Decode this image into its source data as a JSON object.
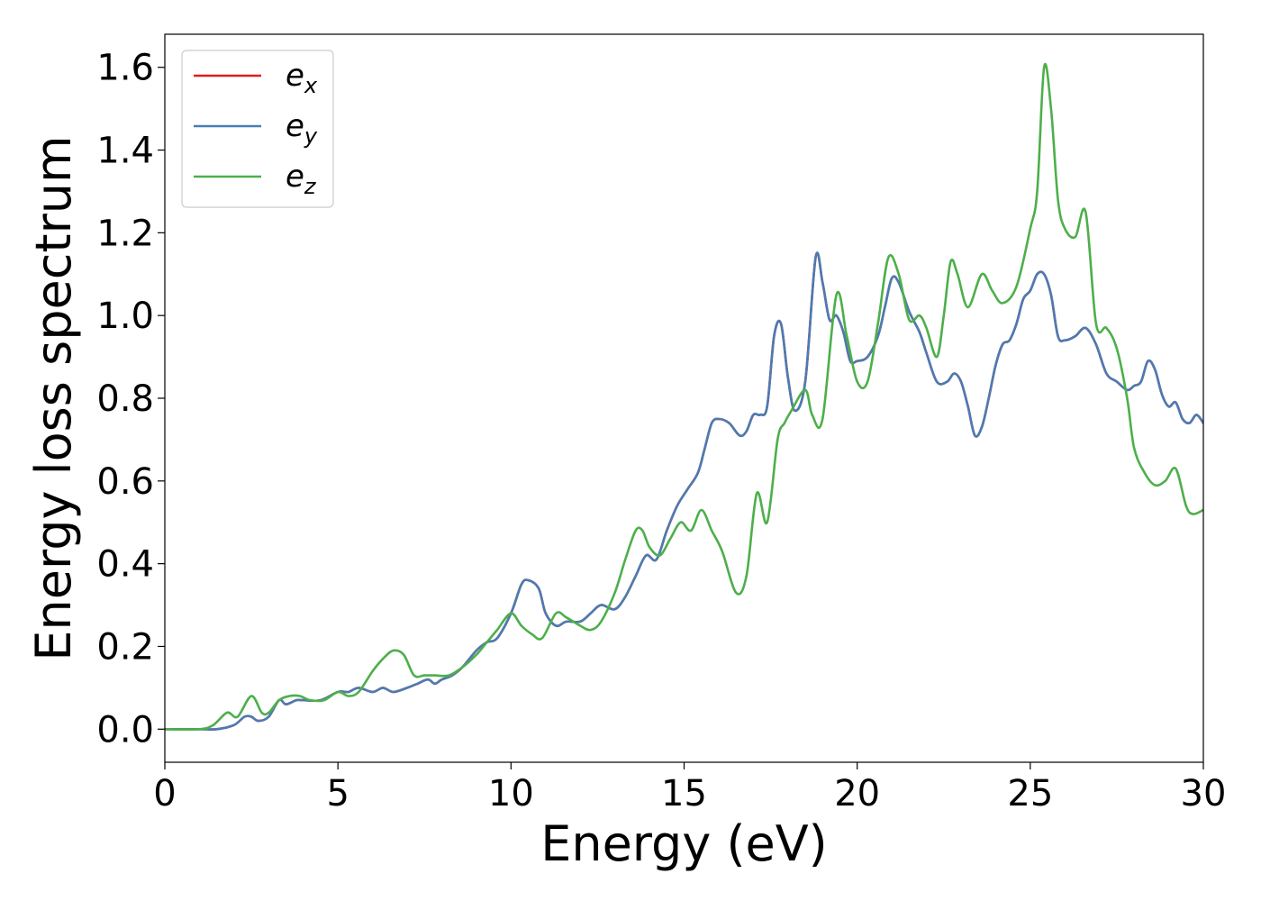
{
  "chart_data": {
    "type": "line",
    "xlabel": "Energy (eV)",
    "ylabel": "Energy loss spectrum",
    "xlim": [
      0,
      30
    ],
    "ylim": [
      -0.08,
      1.68
    ],
    "xticks": [
      0,
      5,
      10,
      15,
      20,
      25,
      30
    ],
    "yticks": [
      0.0,
      0.2,
      0.4,
      0.6,
      0.8,
      1.0,
      1.2,
      1.4,
      1.6
    ],
    "xtick_labels": [
      "0",
      "5",
      "10",
      "15",
      "20",
      "25",
      "30"
    ],
    "ytick_labels": [
      "0.0",
      "0.2",
      "0.4",
      "0.6",
      "0.8",
      "1.0",
      "1.2",
      "1.4",
      "1.6"
    ],
    "grid": false,
    "legend_position": "top-left",
    "series": [
      {
        "name": "e",
        "subscript": "x",
        "color": "#e41a1c",
        "x": [
          0,
          1,
          1.5,
          2,
          2.3,
          2.5,
          2.7,
          3,
          3.3,
          3.5,
          3.8,
          4,
          4.5,
          5,
          5.3,
          5.6,
          6,
          6.3,
          6.6,
          7,
          7.3,
          7.6,
          7.8,
          8,
          8.3,
          8.6,
          9,
          9.3,
          9.6,
          10,
          10.3,
          10.5,
          10.8,
          11,
          11.3,
          11.6,
          12,
          12.3,
          12.6,
          13,
          13.3,
          13.6,
          13.9,
          14.2,
          14.5,
          14.8,
          15.1,
          15.4,
          15.6,
          15.8,
          16,
          16.3,
          16.6,
          16.8,
          17,
          17.2,
          17.4,
          17.6,
          17.8,
          18,
          18.2,
          18.5,
          18.8,
          19,
          19.2,
          19.4,
          19.6,
          19.8,
          20,
          20.3,
          20.6,
          20.8,
          21,
          21.2,
          21.5,
          21.8,
          22,
          22.3,
          22.6,
          22.8,
          23,
          23.2,
          23.4,
          23.6,
          23.8,
          24,
          24.2,
          24.4,
          24.6,
          24.8,
          25,
          25.2,
          25.4,
          25.6,
          25.8,
          26,
          26.3,
          26.6,
          26.9,
          27.2,
          27.5,
          27.8,
          28,
          28.2,
          28.4,
          28.6,
          28.8,
          29,
          29.2,
          29.4,
          29.6,
          29.8,
          30
        ],
        "y": [
          0,
          0,
          0,
          0.01,
          0.03,
          0.03,
          0.02,
          0.03,
          0.07,
          0.06,
          0.07,
          0.07,
          0.07,
          0.09,
          0.09,
          0.1,
          0.09,
          0.1,
          0.09,
          0.1,
          0.11,
          0.12,
          0.11,
          0.12,
          0.13,
          0.15,
          0.19,
          0.21,
          0.22,
          0.28,
          0.35,
          0.36,
          0.34,
          0.28,
          0.25,
          0.26,
          0.26,
          0.28,
          0.3,
          0.29,
          0.32,
          0.37,
          0.42,
          0.41,
          0.48,
          0.54,
          0.58,
          0.62,
          0.68,
          0.74,
          0.75,
          0.74,
          0.71,
          0.72,
          0.76,
          0.76,
          0.78,
          0.95,
          0.98,
          0.85,
          0.77,
          0.84,
          1.14,
          1.08,
          0.99,
          1.0,
          0.96,
          0.89,
          0.89,
          0.9,
          0.95,
          1.02,
          1.09,
          1.08,
          1.01,
          0.96,
          0.91,
          0.84,
          0.84,
          0.86,
          0.84,
          0.78,
          0.71,
          0.73,
          0.8,
          0.88,
          0.93,
          0.94,
          0.98,
          1.04,
          1.06,
          1.1,
          1.1,
          1.05,
          0.95,
          0.94,
          0.95,
          0.97,
          0.93,
          0.86,
          0.84,
          0.82,
          0.83,
          0.84,
          0.89,
          0.87,
          0.81,
          0.78,
          0.79,
          0.75,
          0.74,
          0.76,
          0.74
        ]
      },
      {
        "name": "e",
        "subscript": "y",
        "color": "#4a7cb3",
        "x": [
          0,
          1,
          1.5,
          2,
          2.3,
          2.5,
          2.7,
          3,
          3.3,
          3.5,
          3.8,
          4,
          4.5,
          5,
          5.3,
          5.6,
          6,
          6.3,
          6.6,
          7,
          7.3,
          7.6,
          7.8,
          8,
          8.3,
          8.6,
          9,
          9.3,
          9.6,
          10,
          10.3,
          10.5,
          10.8,
          11,
          11.3,
          11.6,
          12,
          12.3,
          12.6,
          13,
          13.3,
          13.6,
          13.9,
          14.2,
          14.5,
          14.8,
          15.1,
          15.4,
          15.6,
          15.8,
          16,
          16.3,
          16.6,
          16.8,
          17,
          17.2,
          17.4,
          17.6,
          17.8,
          18,
          18.2,
          18.5,
          18.8,
          19,
          19.2,
          19.4,
          19.6,
          19.8,
          20,
          20.3,
          20.6,
          20.8,
          21,
          21.2,
          21.5,
          21.8,
          22,
          22.3,
          22.6,
          22.8,
          23,
          23.2,
          23.4,
          23.6,
          23.8,
          24,
          24.2,
          24.4,
          24.6,
          24.8,
          25,
          25.2,
          25.4,
          25.6,
          25.8,
          26,
          26.3,
          26.6,
          26.9,
          27.2,
          27.5,
          27.8,
          28,
          28.2,
          28.4,
          28.6,
          28.8,
          29,
          29.2,
          29.4,
          29.6,
          29.8,
          30
        ],
        "y": [
          0,
          0,
          0,
          0.01,
          0.03,
          0.03,
          0.02,
          0.03,
          0.07,
          0.06,
          0.07,
          0.07,
          0.07,
          0.09,
          0.09,
          0.1,
          0.09,
          0.1,
          0.09,
          0.1,
          0.11,
          0.12,
          0.11,
          0.12,
          0.13,
          0.15,
          0.19,
          0.21,
          0.22,
          0.28,
          0.35,
          0.36,
          0.34,
          0.28,
          0.25,
          0.26,
          0.26,
          0.28,
          0.3,
          0.29,
          0.32,
          0.37,
          0.42,
          0.41,
          0.48,
          0.54,
          0.58,
          0.62,
          0.68,
          0.74,
          0.75,
          0.74,
          0.71,
          0.72,
          0.76,
          0.76,
          0.78,
          0.95,
          0.98,
          0.85,
          0.77,
          0.84,
          1.14,
          1.08,
          0.99,
          1.0,
          0.96,
          0.89,
          0.89,
          0.9,
          0.95,
          1.02,
          1.09,
          1.08,
          1.01,
          0.96,
          0.91,
          0.84,
          0.84,
          0.86,
          0.84,
          0.78,
          0.71,
          0.73,
          0.8,
          0.88,
          0.93,
          0.94,
          0.98,
          1.04,
          1.06,
          1.1,
          1.1,
          1.05,
          0.95,
          0.94,
          0.95,
          0.97,
          0.93,
          0.86,
          0.84,
          0.82,
          0.83,
          0.84,
          0.89,
          0.87,
          0.81,
          0.78,
          0.79,
          0.75,
          0.74,
          0.76,
          0.74
        ]
      },
      {
        "name": "e",
        "subscript": "z",
        "color": "#4daf4a",
        "x": [
          0,
          1,
          1.4,
          1.8,
          2.1,
          2.5,
          2.8,
          3,
          3.3,
          3.6,
          3.9,
          4.2,
          4.6,
          5,
          5.3,
          5.6,
          6,
          6.3,
          6.6,
          6.9,
          7.2,
          7.5,
          7.8,
          8.2,
          8.6,
          9,
          9.3,
          9.6,
          10,
          10.3,
          10.6,
          10.9,
          11.3,
          11.6,
          12,
          12.3,
          12.6,
          13,
          13.3,
          13.6,
          13.8,
          14,
          14.3,
          14.6,
          14.9,
          15.2,
          15.5,
          15.8,
          16.1,
          16.5,
          16.8,
          17.1,
          17.4,
          17.7,
          17.9,
          18.1,
          18.5,
          18.7,
          19,
          19.4,
          19.7,
          20,
          20.3,
          20.6,
          20.9,
          21.2,
          21.5,
          21.8,
          22,
          22.3,
          22.5,
          22.7,
          22.9,
          23.2,
          23.6,
          23.9,
          24.2,
          24.6,
          25,
          25.2,
          25.4,
          25.6,
          25.8,
          26,
          26.3,
          26.6,
          26.9,
          27.2,
          27.5,
          27.8,
          28,
          28.3,
          28.6,
          28.9,
          29.2,
          29.5,
          29.7,
          30
        ],
        "y": [
          0,
          0,
          0.01,
          0.04,
          0.03,
          0.08,
          0.04,
          0.04,
          0.07,
          0.08,
          0.08,
          0.07,
          0.07,
          0.09,
          0.08,
          0.09,
          0.14,
          0.17,
          0.19,
          0.18,
          0.13,
          0.13,
          0.13,
          0.13,
          0.15,
          0.18,
          0.21,
          0.24,
          0.28,
          0.25,
          0.23,
          0.22,
          0.28,
          0.27,
          0.25,
          0.24,
          0.26,
          0.33,
          0.41,
          0.48,
          0.48,
          0.44,
          0.42,
          0.46,
          0.5,
          0.48,
          0.53,
          0.48,
          0.43,
          0.33,
          0.37,
          0.57,
          0.5,
          0.7,
          0.74,
          0.77,
          0.82,
          0.76,
          0.75,
          1.05,
          0.95,
          0.84,
          0.84,
          0.98,
          1.14,
          1.1,
          0.99,
          1.0,
          0.97,
          0.9,
          1.0,
          1.13,
          1.1,
          1.02,
          1.1,
          1.06,
          1.03,
          1.07,
          1.21,
          1.3,
          1.6,
          1.5,
          1.28,
          1.21,
          1.19,
          1.25,
          0.98,
          0.97,
          0.92,
          0.8,
          0.68,
          0.62,
          0.59,
          0.6,
          0.63,
          0.54,
          0.52,
          0.53
        ]
      }
    ]
  }
}
